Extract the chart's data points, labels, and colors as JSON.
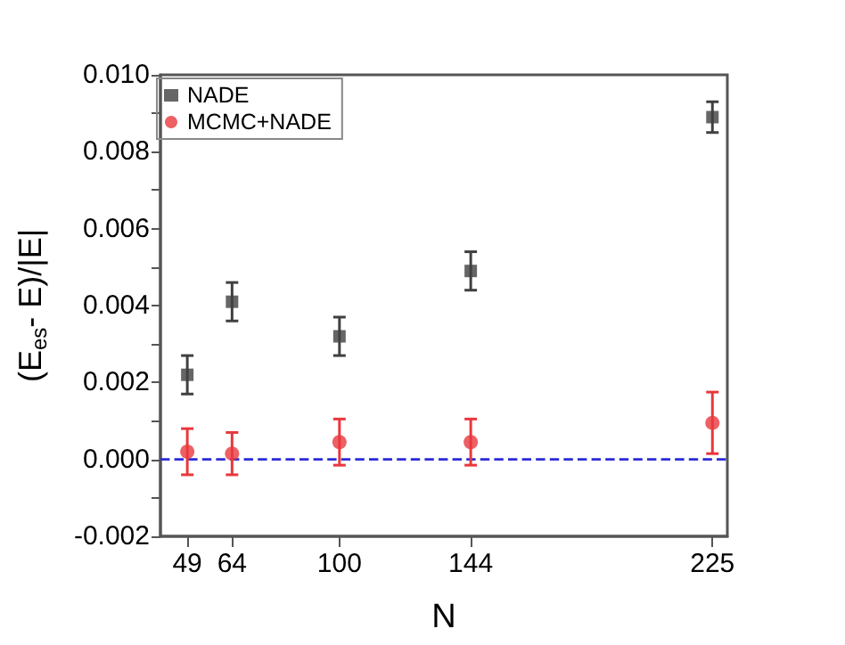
{
  "chart_data": {
    "type": "scatter",
    "xlabel": "N",
    "ylabel": "(E$_{es}$- E)/|E|",
    "x": [
      49,
      64,
      100,
      144,
      225
    ],
    "series": [
      {
        "name": "NADE",
        "color": "#404040",
        "marker": "square",
        "values": [
          0.0022,
          0.0041,
          0.0032,
          0.0049,
          0.0089
        ],
        "errors": [
          0.0005,
          0.0005,
          0.0005,
          0.0005,
          0.0004
        ]
      },
      {
        "name": "MCMC+NADE",
        "color": "#e8383d",
        "marker": "circle",
        "values": [
          0.0002,
          0.00015,
          0.00045,
          0.00045,
          0.00095
        ],
        "errors": [
          0.0006,
          0.00055,
          0.0006,
          0.0006,
          0.0008
        ]
      }
    ],
    "xlim": [
      40,
      230
    ],
    "xticks": [
      49,
      64,
      100,
      144,
      225
    ],
    "ylim": [
      -0.002,
      0.01
    ],
    "yticks": [
      {
        "value": -0.002,
        "label": "-0.002"
      },
      {
        "value": -0.001,
        "label": null
      },
      {
        "value": 0,
        "label": "0.000"
      },
      {
        "value": 0.001,
        "label": null
      },
      {
        "value": 0.002,
        "label": "0.002"
      },
      {
        "value": 0.003,
        "label": null
      },
      {
        "value": 0.004,
        "label": "0.004"
      },
      {
        "value": 0.005,
        "label": null
      },
      {
        "value": 0.006,
        "label": "0.006"
      },
      {
        "value": 0.007,
        "label": null
      },
      {
        "value": 0.008,
        "label": "0.008"
      },
      {
        "value": 0.009,
        "label": null
      },
      {
        "value": 0.01,
        "label": "0.010"
      }
    ],
    "ref_lines": [
      {
        "axis": "y",
        "value": 0,
        "color": "#2b2bd9",
        "line_style": "dashed"
      }
    ],
    "legend": "top left",
    "grid": false
  }
}
